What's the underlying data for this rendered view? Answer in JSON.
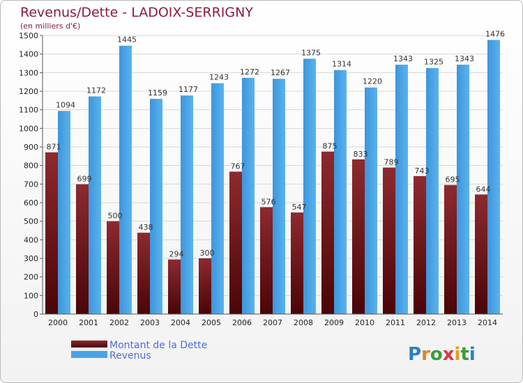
{
  "chart_data": {
    "type": "bar",
    "title": "Revenus/Dette - LADOIX-SERRIGNY",
    "subtitle": "(en milliers d'€)",
    "categories": [
      "2000",
      "2001",
      "2002",
      "2003",
      "2004",
      "2005",
      "2006",
      "2007",
      "2008",
      "2009",
      "2010",
      "2011",
      "2012",
      "2013",
      "2014"
    ],
    "series": [
      {
        "name": "Montant de la Dette",
        "color": "#7d1a1f",
        "values": [
          871,
          699,
          500,
          438,
          294,
          300,
          767,
          576,
          547,
          875,
          833,
          789,
          743,
          695,
          644
        ]
      },
      {
        "name": "Revenus",
        "color": "#4aa3e6",
        "values": [
          1094,
          1172,
          1445,
          1159,
          1177,
          1243,
          1272,
          1267,
          1375,
          1314,
          1220,
          1343,
          1325,
          1343,
          1476
        ]
      }
    ],
    "ylim": [
      0,
      1500
    ],
    "yticks": [
      0,
      100,
      200,
      300,
      400,
      500,
      600,
      700,
      800,
      900,
      1000,
      1100,
      1200,
      1300,
      1400,
      1500
    ],
    "grid": true,
    "legend_placement": "bottom-left"
  },
  "logo": {
    "text": "Proxiti",
    "letters": [
      "P",
      "r",
      "o",
      "x",
      "i",
      "t",
      "i"
    ],
    "colors": [
      "#2a7fc8",
      "#e0821f",
      "#3a9e3a",
      "#d8364b",
      "#e0a01f",
      "#3a9e3a",
      "#2a7fc8"
    ]
  }
}
